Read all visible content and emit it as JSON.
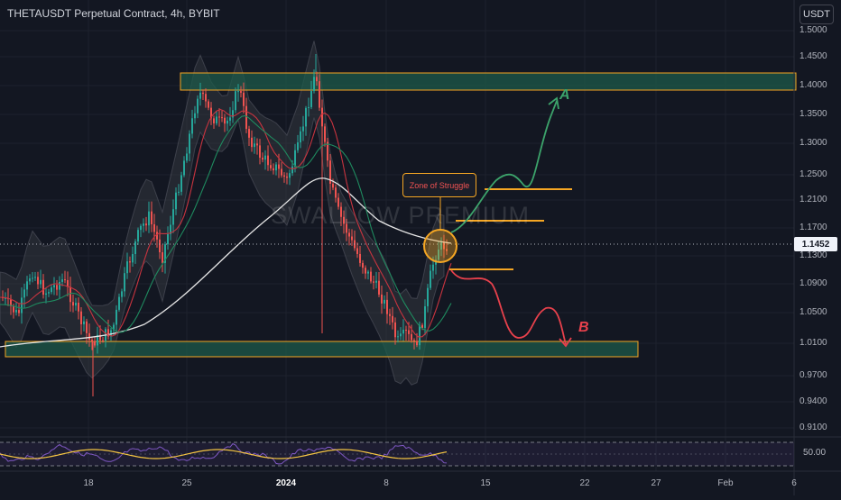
{
  "header": {
    "title": "THETAUSDT Perpetual Contract, 4h, BYBIT",
    "currency": "USDT"
  },
  "price_axis": {
    "labels": [
      "1.5000",
      "1.4500",
      "1.4000",
      "1.3500",
      "1.3000",
      "1.2500",
      "1.2100",
      "1.1700",
      "1.1300",
      "1.0900",
      "1.0500",
      "1.0100",
      "0.9700",
      "0.9400",
      "0.9100"
    ],
    "current_price": "1.1452"
  },
  "time_axis": {
    "labels": [
      "18",
      "25",
      "2024",
      "8",
      "15",
      "22",
      "27",
      "Feb",
      "6"
    ]
  },
  "annotations": {
    "watermark": "SWALLOW PREMIUM",
    "zone_label": "Zone of Struggle",
    "scenario_a": "A",
    "scenario_b": "B"
  },
  "rsi": {
    "value_label": "50.00"
  },
  "colors": {
    "background": "#131722",
    "candle_up": "#26a69a",
    "candle_down": "#ef5350",
    "zone_border": "#f5a623",
    "zone_fill": "#1e5a4a",
    "path_a": "#3ca36b",
    "path_b": "#e8414c",
    "bollinger_fill": "#3a3d45",
    "ma_white": "#e6e6e6",
    "ma_red": "#c8343f",
    "ma_green": "#1f8a5f"
  }
}
